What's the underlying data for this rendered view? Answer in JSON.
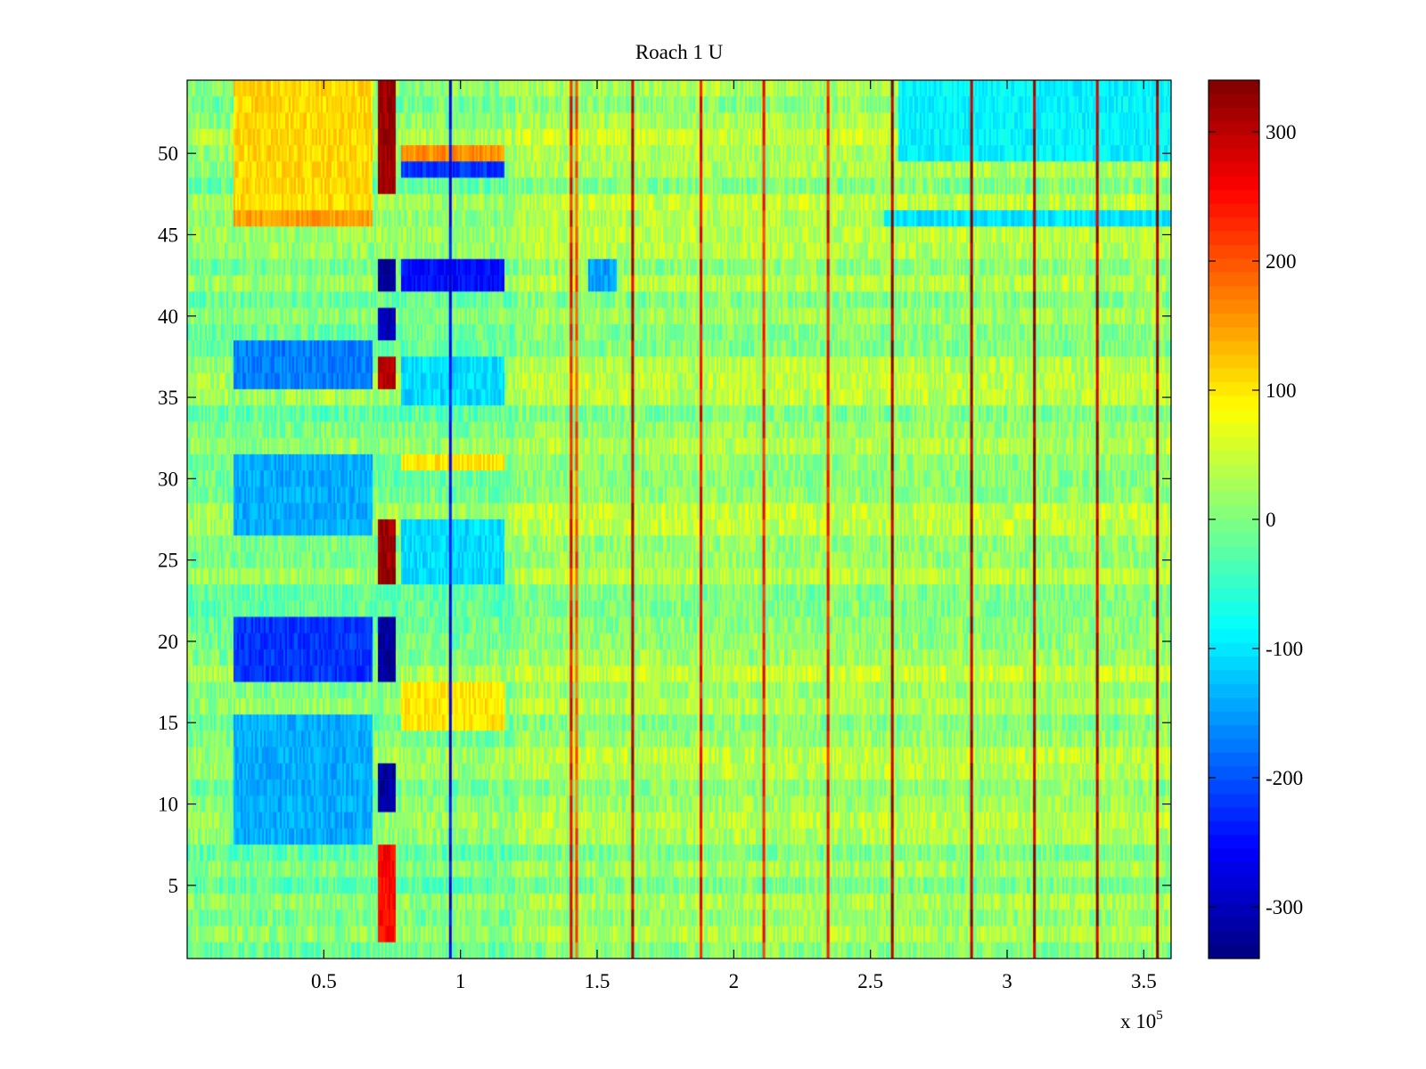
{
  "chart_data": {
    "type": "heatmap",
    "title": "Roach 1 U",
    "xlabel": "",
    "ylabel": "",
    "x_multiplier_base": "x 10",
    "x_multiplier_exp": "5",
    "xlim": [
      0,
      3.6
    ],
    "ylim": [
      0.5,
      54.5
    ],
    "x_ticks": [
      0.5,
      1,
      1.5,
      2,
      2.5,
      3,
      3.5
    ],
    "x_tick_labels": [
      "0.5",
      "1",
      "1.5",
      "2",
      "2.5",
      "3",
      "3.5"
    ],
    "y_ticks": [
      5,
      10,
      15,
      20,
      25,
      30,
      35,
      40,
      45,
      50
    ],
    "y_tick_labels": [
      "5",
      "10",
      "15",
      "20",
      "25",
      "30",
      "35",
      "40",
      "45",
      "50"
    ],
    "rows": 54,
    "colorbar": {
      "limits": [
        -340,
        340
      ],
      "ticks": [
        -300,
        -200,
        -100,
        0,
        100,
        200,
        300
      ],
      "tick_labels": [
        "-300",
        "-200",
        "-100",
        "0",
        "100",
        "200",
        "300"
      ],
      "colormap": "jet"
    },
    "baseline_value": 0,
    "noise_amplitude": 40,
    "right_region_offset": 20,
    "vertical_stripes": [
      {
        "x": 0.963,
        "value": -260
      },
      {
        "x": 1.405,
        "value": 250
      },
      {
        "x": 1.425,
        "value": 200
      },
      {
        "x": 1.63,
        "value": 300
      },
      {
        "x": 1.88,
        "value": 250
      },
      {
        "x": 2.11,
        "value": 240
      },
      {
        "x": 2.345,
        "value": 250
      },
      {
        "x": 2.58,
        "value": 320
      },
      {
        "x": 2.87,
        "value": 320
      },
      {
        "x": 3.1,
        "value": 310
      },
      {
        "x": 3.33,
        "value": 300
      },
      {
        "x": 3.55,
        "value": 320
      }
    ],
    "blocks": [
      {
        "x0": 0.17,
        "x1": 0.68,
        "y0": 47,
        "y1": 54,
        "value": 110
      },
      {
        "x0": 0.17,
        "x1": 0.68,
        "y0": 45.5,
        "y1": 46.5,
        "value": 150
      },
      {
        "x0": 0.17,
        "x1": 0.68,
        "y0": 36,
        "y1": 38.5,
        "value": -170
      },
      {
        "x0": 0.17,
        "x1": 0.68,
        "y0": 26.5,
        "y1": 31.5,
        "value": -140
      },
      {
        "x0": 0.17,
        "x1": 0.68,
        "y0": 17.5,
        "y1": 21.5,
        "value": -220
      },
      {
        "x0": 0.17,
        "x1": 0.68,
        "y0": 7.5,
        "y1": 15.5,
        "value": -140
      },
      {
        "x0": 0.7,
        "x1": 0.76,
        "y0": 47.5,
        "y1": 54,
        "value": 320
      },
      {
        "x0": 0.7,
        "x1": 0.76,
        "y0": 41.5,
        "y1": 43.5,
        "value": -320
      },
      {
        "x0": 0.7,
        "x1": 0.76,
        "y0": 38.5,
        "y1": 40.5,
        "value": -300
      },
      {
        "x0": 0.7,
        "x1": 0.76,
        "y0": 35.5,
        "y1": 37.5,
        "value": 300
      },
      {
        "x0": 0.7,
        "x1": 0.76,
        "y0": 24,
        "y1": 27.5,
        "value": 320
      },
      {
        "x0": 0.7,
        "x1": 0.76,
        "y0": 17.5,
        "y1": 21.5,
        "value": -320
      },
      {
        "x0": 0.7,
        "x1": 0.76,
        "y0": 9.5,
        "y1": 12.5,
        "value": -320
      },
      {
        "x0": 0.7,
        "x1": 0.76,
        "y0": 1.5,
        "y1": 7,
        "value": 250
      },
      {
        "x0": 0.78,
        "x1": 1.16,
        "y0": 49.5,
        "y1": 50.5,
        "value": 160
      },
      {
        "x0": 0.78,
        "x1": 1.16,
        "y0": 48.5,
        "y1": 49.5,
        "value": -220
      },
      {
        "x0": 0.78,
        "x1": 1.16,
        "y0": 41.5,
        "y1": 43.5,
        "value": -250
      },
      {
        "x0": 0.78,
        "x1": 1.16,
        "y0": 34.5,
        "y1": 37.5,
        "value": -110
      },
      {
        "x0": 0.78,
        "x1": 1.16,
        "y0": 30.5,
        "y1": 31.5,
        "value": 100
      },
      {
        "x0": 0.78,
        "x1": 1.16,
        "y0": 24,
        "y1": 27.5,
        "value": -110
      },
      {
        "x0": 0.78,
        "x1": 1.16,
        "y0": 15,
        "y1": 17.5,
        "value": 100
      },
      {
        "x0": 1.47,
        "x1": 1.57,
        "y0": 41.5,
        "y1": 43.5,
        "value": -150
      },
      {
        "x0": 2.6,
        "x1": 3.6,
        "y0": 49.5,
        "y1": 54,
        "value": -90
      },
      {
        "x0": 2.55,
        "x1": 3.6,
        "y0": 45.5,
        "y1": 46.5,
        "value": -100
      }
    ]
  }
}
